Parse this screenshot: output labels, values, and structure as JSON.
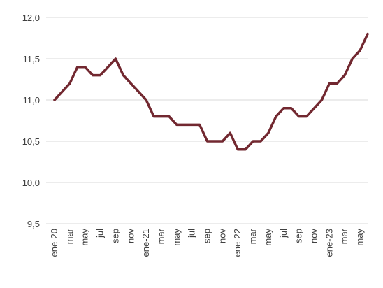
{
  "chart_data": {
    "type": "line",
    "ylim": [
      9.5,
      12.0
    ],
    "yticks": [
      "12,0",
      "11,5",
      "11,0",
      "10,5",
      "10,0",
      "9,5"
    ],
    "ytick_values": [
      12.0,
      11.5,
      11.0,
      10.5,
      10.0,
      9.5
    ],
    "x_tick_labels": [
      "ene-20",
      "mar",
      "may",
      "jul",
      "sep",
      "nov",
      "ene-21",
      "mar",
      "may",
      "jul",
      "sep",
      "nov",
      "ene-22",
      "mar",
      "may",
      "jul",
      "sep",
      "nov",
      "ene-23",
      "mar",
      "may"
    ],
    "grid": true,
    "legend": "none",
    "series": [
      {
        "color": "#722830",
        "values": [
          11.0,
          11.1,
          11.2,
          11.4,
          11.4,
          11.3,
          11.3,
          11.4,
          11.5,
          11.3,
          11.2,
          11.1,
          11.0,
          10.8,
          10.8,
          10.8,
          10.7,
          10.7,
          10.7,
          10.7,
          10.5,
          10.5,
          10.5,
          10.6,
          10.4,
          10.4,
          10.5,
          10.5,
          10.6,
          10.8,
          10.9,
          10.9,
          10.8,
          10.8,
          10.9,
          11.0,
          11.2,
          11.2,
          11.3,
          11.5,
          11.6,
          11.8
        ]
      }
    ]
  }
}
